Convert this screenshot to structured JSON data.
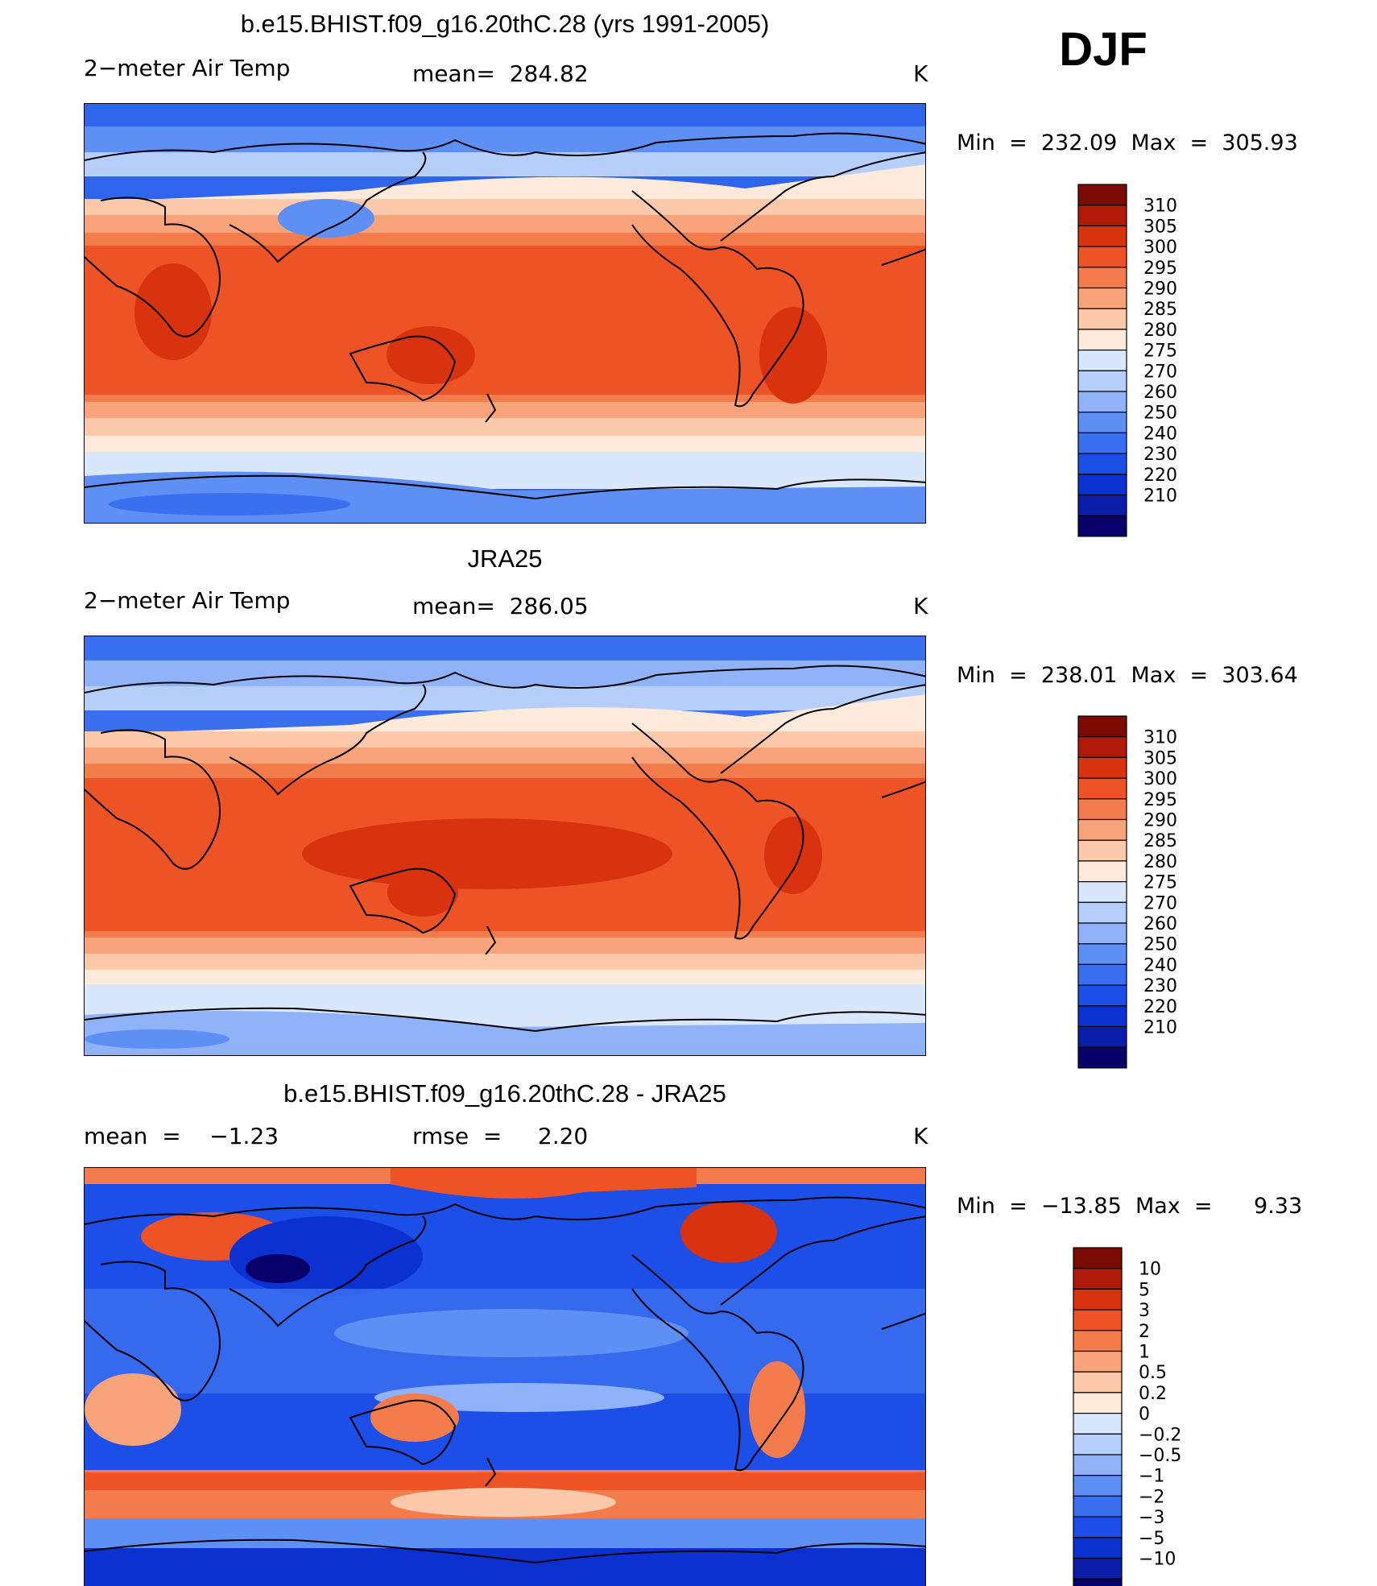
{
  "season": "DJF",
  "colors": {
    "temp_scale": [
      "#08006a",
      "#0a1da8",
      "#0b32d0",
      "#1b4fe8",
      "#3a6ff0",
      "#5e8ff5",
      "#8fb2f9",
      "#b6cffa",
      "#d8e7fc",
      "#fdeadb",
      "#fcc9ab",
      "#f9a37a",
      "#f47b4c",
      "#ee5326",
      "#d8320f",
      "#b01a08",
      "#7a0a03"
    ],
    "diff_scale": [
      "#08006a",
      "#0a1da8",
      "#0b32d0",
      "#1b4fe8",
      "#3a6ff0",
      "#5e8ff5",
      "#8fb2f9",
      "#b6cffa",
      "#d8e7fc",
      "#fdeadb",
      "#fcc9ab",
      "#f9a37a",
      "#f47b4c",
      "#ee5326",
      "#d8320f",
      "#b01a08",
      "#7a0a03"
    ]
  },
  "panels": [
    {
      "title": "b.e15.BHIST.f09_g16.20thC.28 (yrs 1991-2005)",
      "left_label": "2−meter Air Temp",
      "center_label": "mean=  284.82",
      "unit": "K",
      "minmax": "Min  =  232.09  Max  =  305.93",
      "colorbar_labels": [
        "310",
        "305",
        "300",
        "295",
        "290",
        "285",
        "280",
        "275",
        "270",
        "260",
        "250",
        "240",
        "230",
        "220",
        "210"
      ]
    },
    {
      "title": "JRA25",
      "left_label": "2−meter Air Temp",
      "center_label": "mean=  286.05",
      "unit": "K",
      "minmax": "Min  =  238.01  Max  =  303.64",
      "colorbar_labels": [
        "310",
        "305",
        "300",
        "295",
        "290",
        "285",
        "280",
        "275",
        "270",
        "260",
        "250",
        "240",
        "230",
        "220",
        "210"
      ]
    },
    {
      "title": "b.e15.BHIST.f09_g16.20thC.28 - JRA25",
      "left_label": "mean  =    −1.23",
      "center_label": "rmse  =     2.20",
      "unit": "K",
      "minmax": "Min  =  −13.85  Max  =      9.33",
      "colorbar_labels": [
        "10",
        "5",
        "3",
        "2",
        "1",
        "0.5",
        "0.2",
        "0",
        "−0.2",
        "−0.5",
        "−1",
        "−2",
        "−3",
        "−5",
        "−10"
      ]
    }
  ]
}
